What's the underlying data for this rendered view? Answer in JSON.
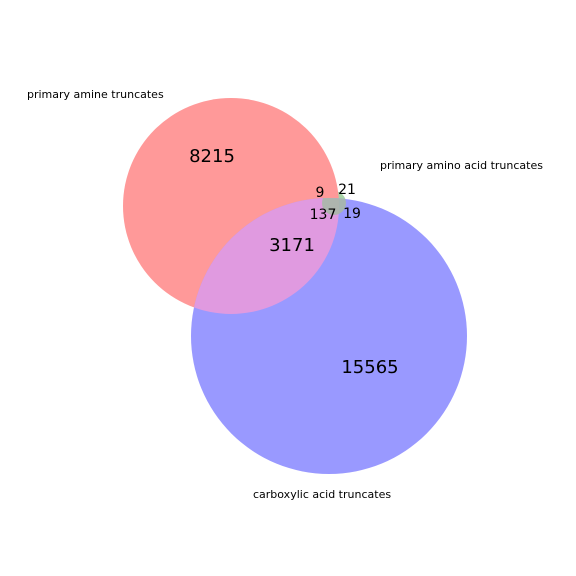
{
  "sets": {
    "amine": {
      "label": "primary amine truncates",
      "color": "#ff9999"
    },
    "carboxylic": {
      "label": "carboxylic acid truncates",
      "color": "#9999ff"
    },
    "amino_acid": {
      "label": "primary amino acid truncates",
      "color": "#99cc99"
    }
  },
  "regions": {
    "amine_only": "8215",
    "carboxylic_only": "15565",
    "amine_carboxylic": "3171",
    "amine_carboxylic_amino_acid": "137",
    "amino_acid_only": "21",
    "amine_amino_acid": "9",
    "carboxylic_amino_acid": "19"
  },
  "colors": {
    "overlap_amine_carboxylic": "#e09ae0",
    "overlap_small": "#a8b8a8"
  }
}
